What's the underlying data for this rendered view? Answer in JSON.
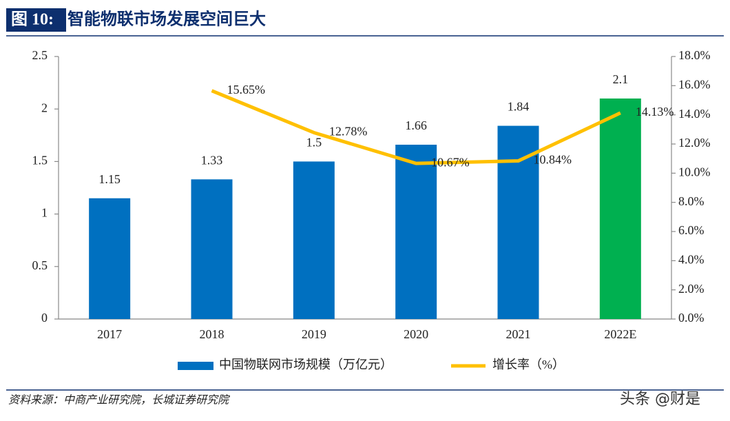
{
  "header": {
    "figure_label": "图 10:",
    "title": "智能物联市场发展空间巨大"
  },
  "chart_data": {
    "type": "combo",
    "categories": [
      "2017",
      "2018",
      "2019",
      "2020",
      "2021",
      "2022E"
    ],
    "series": [
      {
        "name": "中国物联网市场规模（万亿元）",
        "type": "bar",
        "color": "#0070c0",
        "colors": [
          "#0070c0",
          "#0070c0",
          "#0070c0",
          "#0070c0",
          "#0070c0",
          "#00b050"
        ],
        "values": [
          1.15,
          1.33,
          1.5,
          1.66,
          1.84,
          2.1
        ]
      },
      {
        "name": "增长率（%）",
        "type": "line",
        "axis": "y2",
        "color": "#ffc000",
        "values": [
          null,
          15.65,
          12.78,
          10.67,
          10.84,
          14.13
        ],
        "value_labels": [
          null,
          "15.65%",
          "12.78%",
          "10.67%",
          "10.84%",
          "14.13%"
        ]
      }
    ],
    "ylim": [
      0,
      2.5
    ],
    "yticks": [
      0,
      0.5,
      1,
      1.5,
      2,
      2.5
    ],
    "y2lim": [
      0,
      18
    ],
    "y2ticks": [
      {
        "value": 0,
        "label": "0.0%"
      },
      {
        "value": 2,
        "label": "2.0%"
      },
      {
        "value": 4,
        "label": "4.0%"
      },
      {
        "value": 6,
        "label": "6.0%"
      },
      {
        "value": 8,
        "label": "8.0%"
      },
      {
        "value": 10,
        "label": "10.0%"
      },
      {
        "value": 12,
        "label": "12.0%"
      },
      {
        "value": 14,
        "label": "14.0%"
      },
      {
        "value": 16,
        "label": "16.0%"
      },
      {
        "value": 18,
        "label": "18.0%"
      }
    ],
    "legend": "bottom"
  },
  "source": "资料来源：中商产业研究院，长城证券研究院",
  "watermark": "头条 @财是"
}
